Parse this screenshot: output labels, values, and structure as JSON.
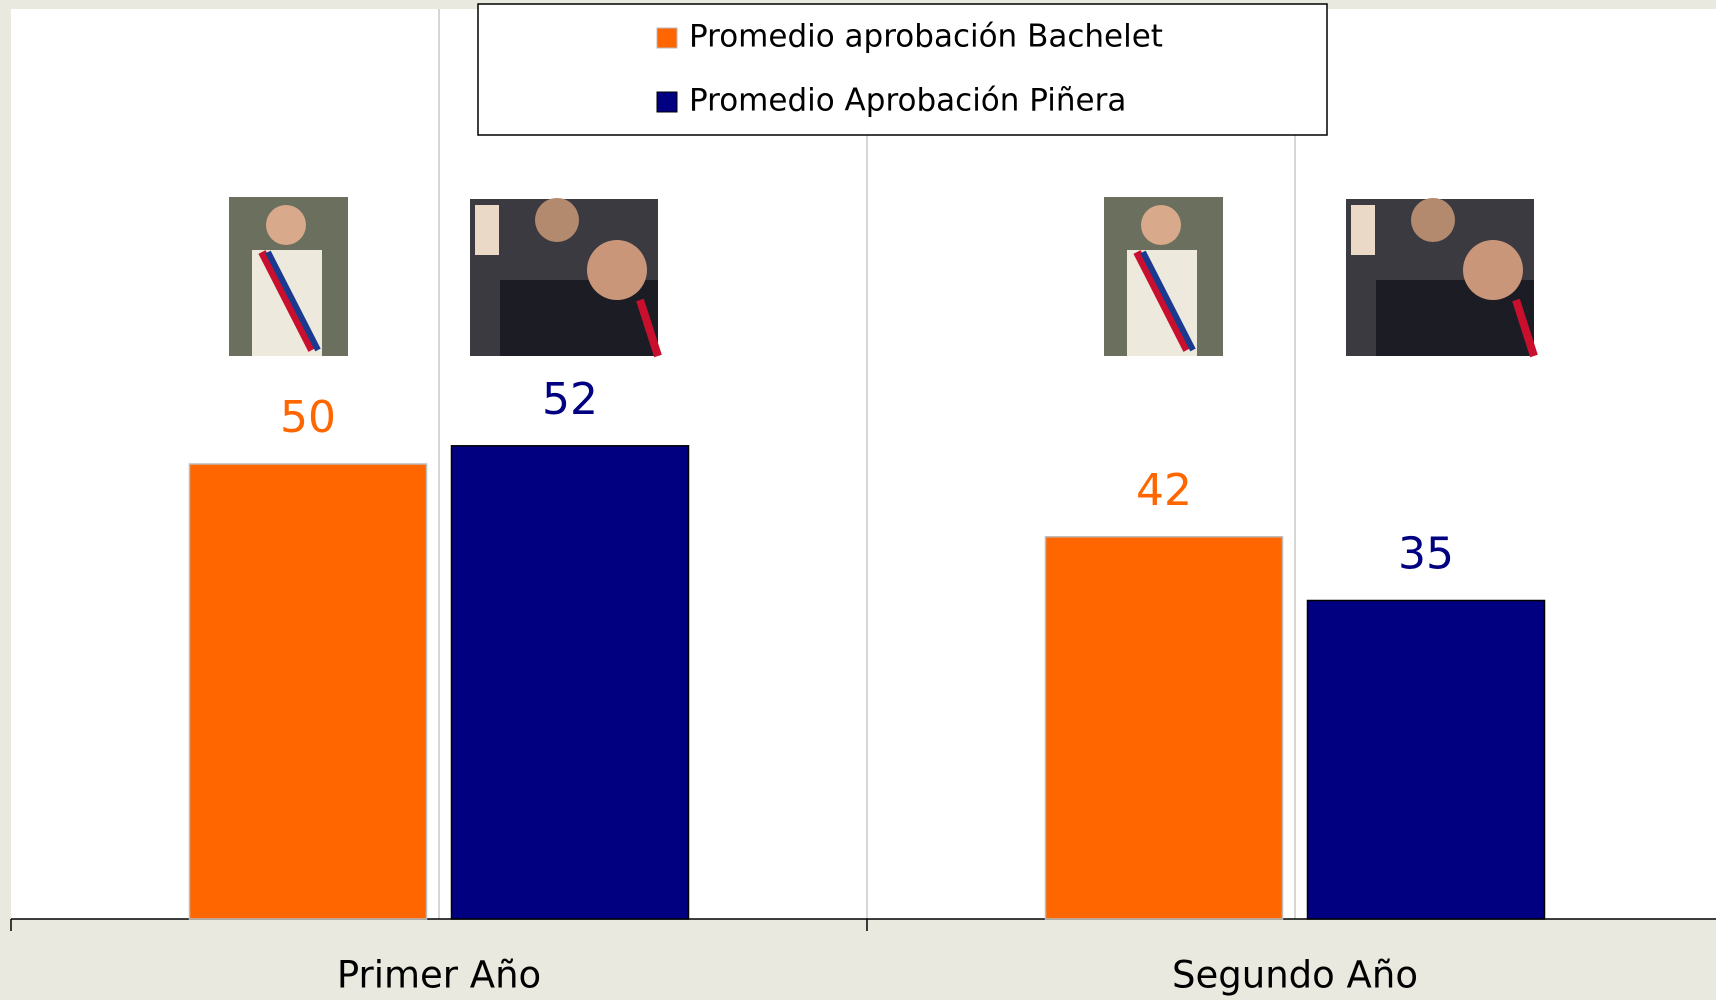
{
  "chart_data": {
    "type": "bar",
    "categories": [
      "Primer Año",
      "Segundo Año"
    ],
    "series": [
      {
        "name": "Promedio aprobación Bachelet",
        "color": "#ff6600",
        "values": [
          50,
          42
        ]
      },
      {
        "name": "Promedio Aprobación Piñera",
        "color": "#000080",
        "values": [
          52,
          35
        ]
      }
    ],
    "ylim": [
      0,
      100
    ],
    "legend": "top"
  }
}
